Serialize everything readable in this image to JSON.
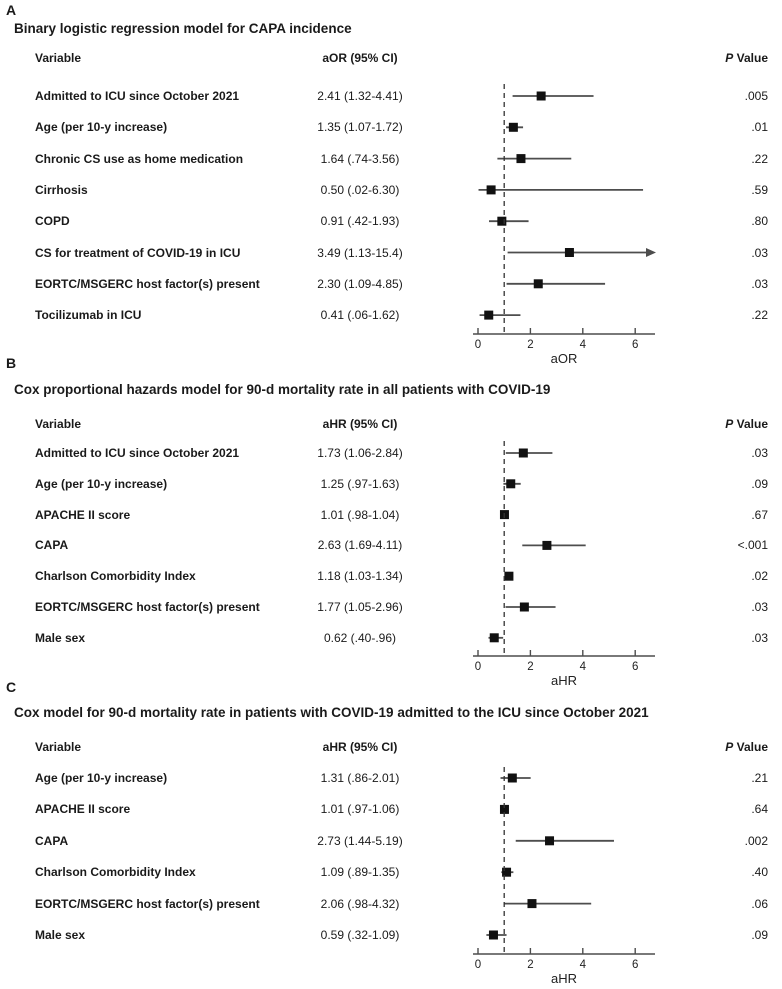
{
  "figure_name": "Forest plots of regression models for CAPA incidence and 90-d mortality",
  "accent_colors": {
    "marker": "#111111",
    "line": "#4d4d4d",
    "text": "#1a1a1a"
  },
  "chart_data": [
    {
      "type": "scatter",
      "subtype": "forest-plot",
      "panel_label": "A",
      "title": "Binary logistic regression model for CAPA incidence",
      "col_variable": "Variable",
      "col_estimate": "aOR (95% CI)",
      "col_p_italic": "P",
      "col_p_rest": " Value",
      "xlabel": "aOR",
      "x_ticks": [
        "0",
        "2",
        "4",
        "6"
      ],
      "x_tick_values": [
        0,
        2,
        4,
        6
      ],
      "xlim": [
        -0.2,
        6.8
      ],
      "reference_line": 1,
      "grid": false,
      "rows": [
        {
          "variable": "Admitted to ICU since October 2021",
          "estimate_text": "2.41 (1.32-4.41)",
          "est": 2.41,
          "lo": 1.32,
          "hi": 4.41,
          "p": ".005"
        },
        {
          "variable": "Age (per 10-y increase)",
          "estimate_text": "1.35 (1.07-1.72)",
          "est": 1.35,
          "lo": 1.07,
          "hi": 1.72,
          "p": ".01"
        },
        {
          "variable": "Chronic CS use as home medication",
          "estimate_text": "1.64 (.74-3.56)",
          "est": 1.64,
          "lo": 0.74,
          "hi": 3.56,
          "p": ".22"
        },
        {
          "variable": "Cirrhosis",
          "estimate_text": "0.50 (.02-6.30)",
          "est": 0.5,
          "lo": 0.02,
          "hi": 6.3,
          "p": ".59"
        },
        {
          "variable": "COPD",
          "estimate_text": "0.91 (.42-1.93)",
          "est": 0.91,
          "lo": 0.42,
          "hi": 1.93,
          "p": ".80"
        },
        {
          "variable": "CS for treatment of COVID-19 in ICU",
          "estimate_text": "3.49 (1.13-15.4)",
          "est": 3.49,
          "lo": 1.13,
          "hi": 15.4,
          "hi_clipped": true,
          "p": ".03"
        },
        {
          "variable": "EORTC/MSGERC host factor(s) present",
          "estimate_text": "2.30 (1.09-4.85)",
          "est": 2.3,
          "lo": 1.09,
          "hi": 4.85,
          "p": ".03"
        },
        {
          "variable": "Tocilizumab in ICU",
          "estimate_text": "0.41 (.06-1.62)",
          "est": 0.41,
          "lo": 0.06,
          "hi": 1.62,
          "p": ".22"
        }
      ]
    },
    {
      "type": "scatter",
      "subtype": "forest-plot",
      "panel_label": "B",
      "title": "Cox proportional hazards model for 90-d mortality rate in all patients with COVID-19",
      "col_variable": "Variable",
      "col_estimate": "aHR (95% CI)",
      "col_p_italic": "P",
      "col_p_rest": " Value",
      "xlabel": "aHR",
      "x_ticks": [
        "0",
        "2",
        "4",
        "6"
      ],
      "x_tick_values": [
        0,
        2,
        4,
        6
      ],
      "xlim": [
        -0.2,
        6.8
      ],
      "reference_line": 1,
      "grid": false,
      "rows": [
        {
          "variable": "Admitted to ICU since October 2021",
          "estimate_text": "1.73 (1.06-2.84)",
          "est": 1.73,
          "lo": 1.06,
          "hi": 2.84,
          "p": ".03"
        },
        {
          "variable": "Age (per 10-y increase)",
          "estimate_text": "1.25 (.97-1.63)",
          "est": 1.25,
          "lo": 0.97,
          "hi": 1.63,
          "p": ".09"
        },
        {
          "variable": "APACHE II score",
          "estimate_text": "1.01 (.98-1.04)",
          "est": 1.01,
          "lo": 0.98,
          "hi": 1.04,
          "p": ".67"
        },
        {
          "variable": "CAPA",
          "estimate_text": "2.63 (1.69-4.11)",
          "est": 2.63,
          "lo": 1.69,
          "hi": 4.11,
          "p": "<.001"
        },
        {
          "variable": "Charlson Comorbidity Index",
          "estimate_text": "1.18 (1.03-1.34)",
          "est": 1.18,
          "lo": 1.03,
          "hi": 1.34,
          "p": ".02"
        },
        {
          "variable": "EORTC/MSGERC host factor(s) present",
          "estimate_text": "1.77 (1.05-2.96)",
          "est": 1.77,
          "lo": 1.05,
          "hi": 2.96,
          "p": ".03"
        },
        {
          "variable": "Male sex",
          "estimate_text": "0.62 (.40-.96)",
          "est": 0.62,
          "lo": 0.4,
          "hi": 0.96,
          "p": ".03"
        }
      ]
    },
    {
      "type": "scatter",
      "subtype": "forest-plot",
      "panel_label": "C",
      "title": "Cox model for 90-d mortality rate in patients with COVID-19 admitted to the ICU since October 2021",
      "col_variable": "Variable",
      "col_estimate": "aHR (95% CI)",
      "col_p_italic": "P",
      "col_p_rest": " Value",
      "xlabel": "aHR",
      "x_ticks": [
        "0",
        "2",
        "4",
        "6"
      ],
      "x_tick_values": [
        0,
        2,
        4,
        6
      ],
      "xlim": [
        -0.2,
        6.8
      ],
      "reference_line": 1,
      "grid": false,
      "rows": [
        {
          "variable": "Age (per 10-y increase)",
          "estimate_text": "1.31 (.86-2.01)",
          "est": 1.31,
          "lo": 0.86,
          "hi": 2.01,
          "p": ".21"
        },
        {
          "variable": "APACHE II score",
          "estimate_text": "1.01 (.97-1.06)",
          "est": 1.01,
          "lo": 0.97,
          "hi": 1.06,
          "p": ".64"
        },
        {
          "variable": "CAPA",
          "estimate_text": "2.73 (1.44-5.19)",
          "est": 2.73,
          "lo": 1.44,
          "hi": 5.19,
          "p": ".002"
        },
        {
          "variable": "Charlson Comorbidity Index",
          "estimate_text": "1.09 (.89-1.35)",
          "est": 1.09,
          "lo": 0.89,
          "hi": 1.35,
          "p": ".40"
        },
        {
          "variable": "EORTC/MSGERC host factor(s) present",
          "estimate_text": "2.06 (.98-4.32)",
          "est": 2.06,
          "lo": 0.98,
          "hi": 4.32,
          "p": ".06"
        },
        {
          "variable": "Male sex",
          "estimate_text": "0.59 (.32-1.09)",
          "est": 0.59,
          "lo": 0.32,
          "hi": 1.09,
          "p": ".09"
        }
      ]
    }
  ]
}
